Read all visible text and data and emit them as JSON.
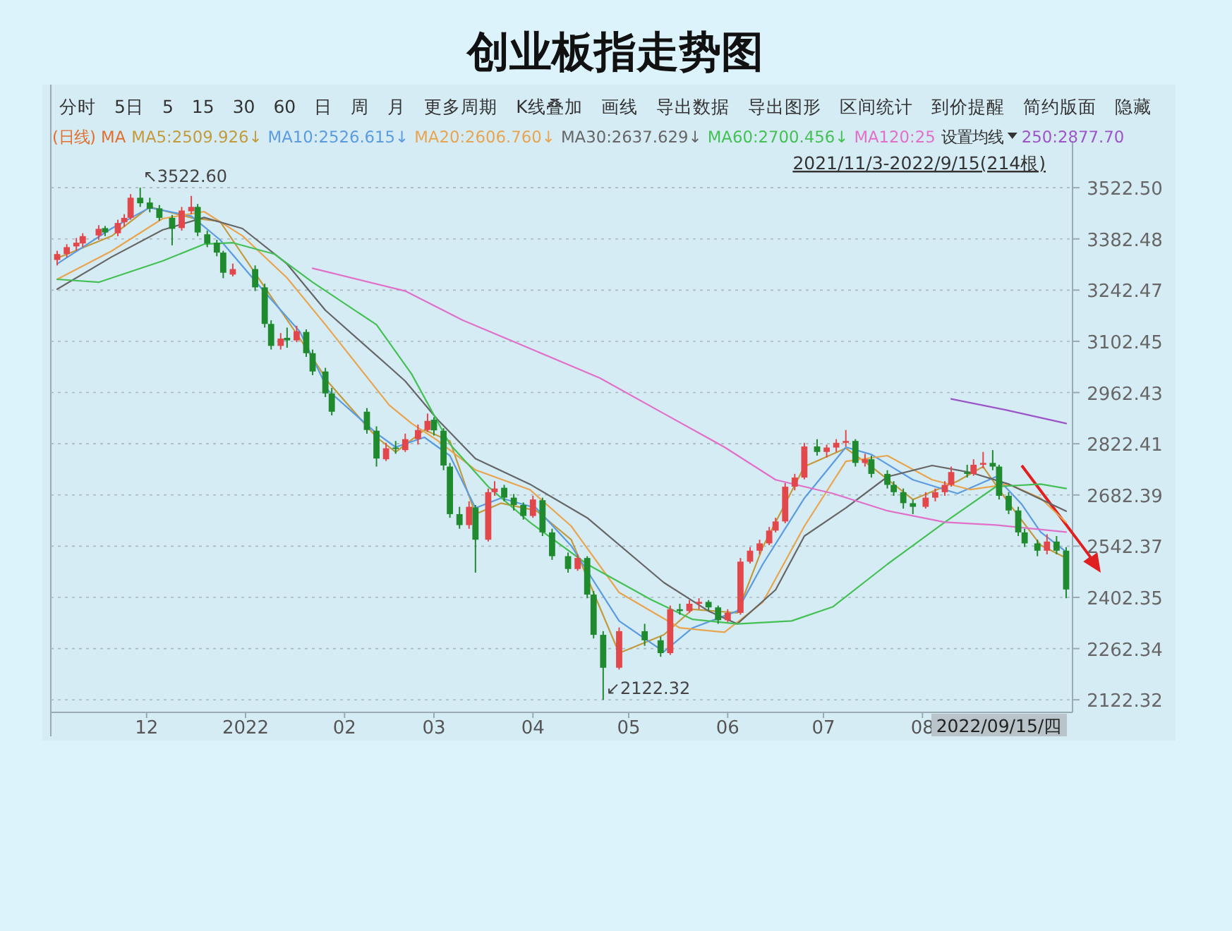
{
  "chart_data": {
    "type": "candlestick",
    "title": "创业板指走势图",
    "legend_title": "(日线) MA",
    "legend": "top",
    "grid": "y",
    "colors": [
      "#e2474b",
      "#e2474b",
      "#e2474b",
      "#e2474b",
      "#e2474b",
      "#1f8a2e",
      "#e2474b",
      "#e2474b",
      "#e2474b",
      "#1f8a2e",
      "#1f8a2e",
      "#1f8a2e",
      "#1f8a2e",
      "#e2474b",
      "#e2474b",
      "#1f8a2e",
      "#1f8a2e",
      "#1f8a2e",
      "#1f8a2e",
      "#e2474b",
      "#1f8a2e",
      "#1f8a2e",
      "#1f8a2e",
      "#e2474b",
      "#1f8a2e",
      "#e2474b",
      "#1f8a2e",
      "#1f8a2e",
      "#1f8a2e",
      "#1f8a2e",
      "#1f8a2e",
      "#1f8a2e",
      "#e2474b",
      "#1f8a2e",
      "#e2474b",
      "#e2474b",
      "#e2474b",
      "#1f8a2e",
      "#1f8a2e",
      "#1f8a2e",
      "#1f8a2e",
      "#e2474b",
      "#1f8a2e",
      "#e2474b",
      "#e2474b",
      "#1f8a2e",
      "#1f8a2e",
      "#1f8a2e",
      "#e2474b",
      "#1f8a2e",
      "#1f8a2e",
      "#1f8a2e",
      "#e2474b",
      "#1f8a2e",
      "#1f8a2e",
      "#1f8a2e",
      "#e2474b",
      "#1f8a2e",
      "#1f8a2e",
      "#e2474b",
      "#1f8a2e",
      "#e2474b",
      "#e2474b",
      "#1f8a2e",
      "#1f8a2e",
      "#e2474b",
      "#e2474b",
      "#e2474b",
      "#e2474b",
      "#e2474b",
      "#e2474b",
      "#e2474b",
      "#e2474b",
      "#e2474b",
      "#1f8a2e",
      "#e2474b",
      "#e2474b",
      "#e2474b",
      "#1f8a2e",
      "#e2474b",
      "#1f8a2e",
      "#1f8a2e",
      "#1f8a2e",
      "#1f8a2e",
      "#1f8a2e",
      "#e2474b",
      "#e2474b",
      "#e2474b",
      "#e2474b",
      "#1f8a2e",
      "#e2474b",
      "#e2474b",
      "#1f8a2e",
      "#1f8a2e",
      "#1f8a2e",
      "#1f8a2e",
      "#1f8a2e",
      "#1f8a2e",
      "#e2474b",
      "#1f8a2e",
      "#1f8a2e"
    ],
    "xlim": [
      "2021-11-01",
      "2022-09-17"
    ],
    "xticks": [
      {
        "value": "2021-12-01",
        "label": "12"
      },
      {
        "value": "2022-01-01",
        "label": "2022"
      },
      {
        "value": "2022-02-01",
        "label": "02"
      },
      {
        "value": "2022-03-01",
        "label": "03"
      },
      {
        "value": "2022-04-01",
        "label": "04"
      },
      {
        "value": "2022-05-01",
        "label": "05"
      },
      {
        "value": "2022-06-01",
        "label": "06"
      },
      {
        "value": "2022-07-01",
        "label": "07"
      },
      {
        "value": "2022-08-01",
        "label": "08"
      }
    ],
    "ylim": [
      2088,
      3650
    ],
    "yticks": [
      {
        "value": 2122.32,
        "label": "2122.32"
      },
      {
        "value": 2262.34,
        "label": "2262.34"
      },
      {
        "value": 2402.35,
        "label": "2402.35"
      },
      {
        "value": 2542.37,
        "label": "2542.37"
      },
      {
        "value": 2682.39,
        "label": "2682.39"
      },
      {
        "value": 2822.41,
        "label": "2822.41"
      },
      {
        "value": 2962.43,
        "label": "2962.43"
      },
      {
        "value": 3102.45,
        "label": "3102.45"
      },
      {
        "value": 3242.47,
        "label": "3242.47"
      },
      {
        "value": 3382.48,
        "label": "3382.48"
      },
      {
        "value": 3522.5,
        "label": "3522.50"
      }
    ],
    "x": [
      "2021-11-03",
      "2021-11-06",
      "2021-11-09",
      "2021-11-11",
      "2021-11-16",
      "2021-11-18",
      "2021-11-22",
      "2021-11-24",
      "2021-11-26",
      "2021-11-29",
      "2021-12-02",
      "2021-12-05",
      "2021-12-09",
      "2021-12-12",
      "2021-12-15",
      "2021-12-17",
      "2021-12-20",
      "2021-12-23",
      "2021-12-25",
      "2021-12-28",
      "2022-01-04",
      "2022-01-07",
      "2022-01-09",
      "2022-01-12",
      "2022-01-14",
      "2022-01-17",
      "2022-01-20",
      "2022-01-22",
      "2022-01-26",
      "2022-01-28",
      "2022-02-08",
      "2022-02-11",
      "2022-02-14",
      "2022-02-17",
      "2022-02-20",
      "2022-02-24",
      "2022-02-27",
      "2022-03-01",
      "2022-03-04",
      "2022-03-06",
      "2022-03-09",
      "2022-03-12",
      "2022-03-14",
      "2022-03-18",
      "2022-03-20",
      "2022-03-23",
      "2022-03-26",
      "2022-03-29",
      "2022-04-01",
      "2022-04-04",
      "2022-04-07",
      "2022-04-12",
      "2022-04-15",
      "2022-04-18",
      "2022-04-20",
      "2022-04-23",
      "2022-04-28",
      "2022-05-06",
      "2022-05-11",
      "2022-05-14",
      "2022-05-17",
      "2022-05-20",
      "2022-05-23",
      "2022-05-26",
      "2022-05-29",
      "2022-06-01",
      "2022-06-05",
      "2022-06-08",
      "2022-06-11",
      "2022-06-14",
      "2022-06-16",
      "2022-06-19",
      "2022-06-22",
      "2022-06-25",
      "2022-06-29",
      "2022-07-02",
      "2022-07-05",
      "2022-07-08",
      "2022-07-11",
      "2022-07-14",
      "2022-07-16",
      "2022-07-21",
      "2022-07-23",
      "2022-07-26",
      "2022-07-29",
      "2022-08-02",
      "2022-08-05",
      "2022-08-08",
      "2022-08-10",
      "2022-08-15",
      "2022-08-17",
      "2022-08-20",
      "2022-08-23",
      "2022-08-25",
      "2022-08-28",
      "2022-08-31",
      "2022-09-02",
      "2022-09-06",
      "2022-09-09",
      "2022-09-12",
      "2022-09-15"
    ],
    "ohlc": [
      [
        3325,
        3350,
        3310,
        3341
      ],
      [
        3341,
        3368,
        3332,
        3360
      ],
      [
        3362,
        3385,
        3350,
        3372
      ],
      [
        3370,
        3398,
        3360,
        3390
      ],
      [
        3392,
        3420,
        3380,
        3410
      ],
      [
        3412,
        3418,
        3390,
        3400
      ],
      [
        3398,
        3435,
        3390,
        3426
      ],
      [
        3428,
        3450,
        3415,
        3440
      ],
      [
        3440,
        3505,
        3435,
        3495
      ],
      [
        3495,
        3522.6,
        3470,
        3480
      ],
      [
        3482,
        3495,
        3455,
        3465
      ],
      [
        3466,
        3475,
        3432,
        3440
      ],
      [
        3440,
        3448,
        3365,
        3410
      ],
      [
        3412,
        3470,
        3405,
        3460
      ],
      [
        3458,
        3500,
        3450,
        3470
      ],
      [
        3470,
        3478,
        3390,
        3400
      ],
      [
        3395,
        3405,
        3360,
        3370
      ],
      [
        3372,
        3380,
        3335,
        3345
      ],
      [
        3345,
        3350,
        3275,
        3290
      ],
      [
        3285,
        3315,
        3280,
        3300
      ],
      [
        3300,
        3310,
        3240,
        3250
      ],
      [
        3250,
        3260,
        3140,
        3150
      ],
      [
        3150,
        3160,
        3080,
        3090
      ],
      [
        3090,
        3125,
        3080,
        3110
      ],
      [
        3112,
        3140,
        3085,
        3105
      ],
      [
        3105,
        3145,
        3100,
        3130
      ],
      [
        3128,
        3135,
        3060,
        3070
      ],
      [
        3070,
        3080,
        3010,
        3020
      ],
      [
        3020,
        3030,
        2950,
        2960
      ],
      [
        2960,
        2975,
        2900,
        2910
      ],
      [
        2910,
        2920,
        2850,
        2860
      ],
      [
        2858,
        2870,
        2760,
        2782
      ],
      [
        2780,
        2825,
        2775,
        2810
      ],
      [
        2812,
        2830,
        2795,
        2809
      ],
      [
        2805,
        2850,
        2800,
        2835
      ],
      [
        2835,
        2875,
        2820,
        2860
      ],
      [
        2860,
        2905,
        2855,
        2885
      ],
      [
        2888,
        2895,
        2845,
        2859
      ],
      [
        2858,
        2865,
        2750,
        2763
      ],
      [
        2760,
        2770,
        2620,
        2630
      ],
      [
        2630,
        2650,
        2590,
        2600
      ],
      [
        2600,
        2665,
        2590,
        2650
      ],
      [
        2648,
        2655,
        2470,
        2560
      ],
      [
        2560,
        2700,
        2555,
        2690
      ],
      [
        2690,
        2720,
        2680,
        2700
      ],
      [
        2702,
        2710,
        2665,
        2675
      ],
      [
        2675,
        2685,
        2640,
        2655
      ],
      [
        2655,
        2662,
        2615,
        2625
      ],
      [
        2625,
        2680,
        2620,
        2670
      ],
      [
        2668,
        2675,
        2570,
        2580
      ],
      [
        2580,
        2590,
        2505,
        2515
      ],
      [
        2515,
        2525,
        2470,
        2480
      ],
      [
        2480,
        2520,
        2475,
        2510
      ],
      [
        2510,
        2515,
        2400,
        2410
      ],
      [
        2410,
        2420,
        2290,
        2300
      ],
      [
        2300,
        2310,
        2122.32,
        2210
      ],
      [
        2210,
        2320,
        2205,
        2310
      ],
      [
        2310,
        2330,
        2270,
        2285
      ],
      [
        2285,
        2295,
        2240,
        2250
      ],
      [
        2250,
        2380,
        2245,
        2370
      ],
      [
        2370,
        2385,
        2355,
        2365
      ],
      [
        2365,
        2395,
        2360,
        2385
      ],
      [
        2385,
        2400,
        2370,
        2390
      ],
      [
        2390,
        2395,
        2365,
        2375
      ],
      [
        2375,
        2380,
        2330,
        2340
      ],
      [
        2340,
        2370,
        2335,
        2360
      ],
      [
        2360,
        2510,
        2355,
        2500
      ],
      [
        2500,
        2540,
        2495,
        2530
      ],
      [
        2530,
        2560,
        2520,
        2550
      ],
      [
        2550,
        2595,
        2545,
        2585
      ],
      [
        2585,
        2620,
        2580,
        2610
      ],
      [
        2610,
        2715,
        2605,
        2705
      ],
      [
        2705,
        2740,
        2695,
        2730
      ],
      [
        2730,
        2825,
        2725,
        2815
      ],
      [
        2815,
        2835,
        2790,
        2800
      ],
      [
        2800,
        2820,
        2785,
        2812
      ],
      [
        2812,
        2835,
        2800,
        2825
      ],
      [
        2825,
        2860,
        2815,
        2830
      ],
      [
        2830,
        2835,
        2760,
        2770
      ],
      [
        2770,
        2795,
        2760,
        2780
      ],
      [
        2780,
        2790,
        2730,
        2740
      ],
      [
        2740,
        2750,
        2700,
        2710
      ],
      [
        2710,
        2720,
        2680,
        2690
      ],
      [
        2690,
        2700,
        2645,
        2660
      ],
      [
        2660,
        2670,
        2630,
        2650
      ],
      [
        2650,
        2690,
        2645,
        2675
      ],
      [
        2675,
        2700,
        2665,
        2690
      ],
      [
        2690,
        2720,
        2680,
        2710
      ],
      [
        2710,
        2760,
        2705,
        2745
      ],
      [
        2745,
        2765,
        2730,
        2740
      ],
      [
        2740,
        2780,
        2735,
        2765
      ],
      [
        2765,
        2800,
        2755,
        2770
      ],
      [
        2770,
        2805,
        2750,
        2760
      ],
      [
        2760,
        2765,
        2670,
        2680
      ],
      [
        2680,
        2690,
        2630,
        2640
      ],
      [
        2640,
        2650,
        2570,
        2580
      ],
      [
        2580,
        2590,
        2540,
        2550
      ],
      [
        2550,
        2560,
        2515,
        2530
      ],
      [
        2530,
        2575,
        2520,
        2555
      ],
      [
        2555,
        2570,
        2520,
        2530
      ],
      [
        2530,
        2540,
        2400,
        2424
      ]
    ],
    "series": [
      {
        "type": "line",
        "name": "MA5:2509.926↓",
        "color": "#c39a3c",
        "x": [
          "2021-11-03",
          "2021-11-20",
          "2021-12-02",
          "2021-12-15",
          "2021-12-24",
          "2022-01-07",
          "2022-01-18",
          "2022-01-27",
          "2022-02-11",
          "2022-02-17",
          "2022-02-26",
          "2022-03-06",
          "2022-03-14",
          "2022-03-22",
          "2022-04-02",
          "2022-04-13",
          "2022-04-28",
          "2022-05-12",
          "2022-05-21",
          "2022-06-04",
          "2022-06-12",
          "2022-06-25",
          "2022-07-08",
          "2022-07-16",
          "2022-07-29",
          "2022-08-12",
          "2022-08-20",
          "2022-08-28",
          "2022-09-07",
          "2022-09-15"
        ],
        "values": [
          3330,
          3390,
          3470,
          3440,
          3430,
          3250,
          3110,
          2990,
          2840,
          2800,
          2860,
          2830,
          2630,
          2660,
          2640,
          2560,
          2250,
          2300,
          2370,
          2360,
          2540,
          2760,
          2810,
          2760,
          2670,
          2720,
          2760,
          2660,
          2545,
          2510
        ]
      },
      {
        "type": "line",
        "name": "MA10:2526.615↓",
        "color": "#5b9be0",
        "x": [
          "2021-11-03",
          "2021-11-20",
          "2021-12-02",
          "2021-12-15",
          "2021-12-24",
          "2022-01-07",
          "2022-01-18",
          "2022-01-27",
          "2022-02-11",
          "2022-02-17",
          "2022-02-26",
          "2022-03-06",
          "2022-03-14",
          "2022-03-22",
          "2022-04-02",
          "2022-04-13",
          "2022-04-28",
          "2022-05-12",
          "2022-05-21",
          "2022-06-04",
          "2022-06-12",
          "2022-06-25",
          "2022-07-08",
          "2022-07-16",
          "2022-07-29",
          "2022-08-12",
          "2022-08-24",
          "2022-09-01",
          "2022-09-07",
          "2022-09-15"
        ],
        "values": [
          3314,
          3411,
          3468,
          3445,
          3380,
          3237,
          3129,
          2967,
          2851,
          2813,
          2840,
          2790,
          2647,
          2674,
          2647,
          2543,
          2338,
          2254,
          2319,
          2365,
          2493,
          2674,
          2813,
          2793,
          2724,
          2686,
          2732,
          2658,
          2581,
          2527
        ]
      },
      {
        "type": "line",
        "name": "MA20:2606.760↓",
        "color": "#e8a550",
        "x": [
          "2021-11-03",
          "2021-11-20",
          "2021-12-06",
          "2021-12-19",
          "2021-12-31",
          "2022-01-14",
          "2022-01-26",
          "2022-02-15",
          "2022-02-22",
          "2022-03-02",
          "2022-03-14",
          "2022-03-31",
          "2022-04-13",
          "2022-04-28",
          "2022-05-17",
          "2022-05-31",
          "2022-06-12",
          "2022-06-25",
          "2022-07-08",
          "2022-07-21",
          "2022-08-04",
          "2022-08-16",
          "2022-08-28",
          "2022-09-07",
          "2022-09-15"
        ],
        "values": [
          3272,
          3349,
          3438,
          3457,
          3391,
          3276,
          3148,
          2928,
          2878,
          2832,
          2751,
          2697,
          2597,
          2416,
          2319,
          2307,
          2389,
          2597,
          2774,
          2790,
          2724,
          2697,
          2712,
          2674,
          2607
        ]
      },
      {
        "type": "line",
        "name": "MA30:2637.629↓",
        "color": "#666666",
        "x": [
          "2021-11-03",
          "2021-11-20",
          "2021-12-06",
          "2021-12-19",
          "2021-12-31",
          "2022-01-14",
          "2022-01-26",
          "2022-02-15",
          "2022-02-20",
          "2022-03-02",
          "2022-03-14",
          "2022-03-31",
          "2022-04-18",
          "2022-05-12",
          "2022-05-26",
          "2022-06-04",
          "2022-06-16",
          "2022-06-25",
          "2022-07-08",
          "2022-07-21",
          "2022-08-04",
          "2022-08-16",
          "2022-08-28",
          "2022-09-15"
        ],
        "values": [
          3245,
          3333,
          3407,
          3441,
          3411,
          3314,
          3187,
          3033,
          2994,
          2890,
          2782,
          2712,
          2620,
          2443,
          2365,
          2330,
          2423,
          2570,
          2647,
          2732,
          2763,
          2744,
          2712,
          2638
        ]
      },
      {
        "type": "line",
        "name": "MA60:2700.456↓",
        "color": "#44c055",
        "x": [
          "2021-11-03",
          "2021-11-16",
          "2021-12-06",
          "2021-12-19",
          "2021-12-28",
          "2022-01-10",
          "2022-01-22",
          "2022-02-11",
          "2022-02-22",
          "2022-03-06",
          "2022-03-18",
          "2022-03-31",
          "2022-04-18",
          "2022-05-08",
          "2022-05-21",
          "2022-06-04",
          "2022-06-21",
          "2022-07-04",
          "2022-07-21",
          "2022-08-08",
          "2022-08-24",
          "2022-09-07",
          "2022-09-15"
        ],
        "values": [
          3272,
          3264,
          3322,
          3368,
          3372,
          3341,
          3264,
          3148,
          3013,
          2821,
          2705,
          2608,
          2493,
          2396,
          2342,
          2330,
          2338,
          2377,
          2493,
          2608,
          2705,
          2712,
          2700
        ]
      },
      {
        "type": "line",
        "name": "MA120:25",
        "color": "#e070c8",
        "x": [
          "2022-01-22",
          "2022-02-20",
          "2022-03-10",
          "2022-03-31",
          "2022-04-22",
          "2022-05-12",
          "2022-05-31",
          "2022-06-16",
          "2022-07-04",
          "2022-07-21",
          "2022-08-08",
          "2022-08-24",
          "2022-09-15"
        ],
        "values": [
          3302,
          3240,
          3160,
          3083,
          3002,
          2905,
          2813,
          2724,
          2686,
          2639,
          2608,
          2600,
          2581
        ]
      },
      {
        "type": "line",
        "name": "250:2877.70",
        "color": "#9b55c8",
        "x": [
          "2022-08-10",
          "2022-08-27",
          "2022-09-15"
        ],
        "values": [
          2945,
          2915,
          2878
        ]
      }
    ],
    "annotations": [
      "2021/11/3-2022/9/15(214根)",
      "设置均线",
      "2022/09/15/四",
      {
        "text": "↖3522.60",
        "x": "2021-11-29",
        "y": 3522.6
      },
      {
        "text": "↙2122.32",
        "x": "2022-04-23",
        "y": 2122.32
      },
      "分时",
      "5日",
      "5",
      "15",
      "30",
      "60",
      "日",
      "周",
      "月",
      "更多周期",
      "K线叠加",
      "画线",
      "导出数据",
      "导出图形",
      "区间统计",
      "到价提醒",
      "简约版面",
      "隐藏"
    ]
  }
}
